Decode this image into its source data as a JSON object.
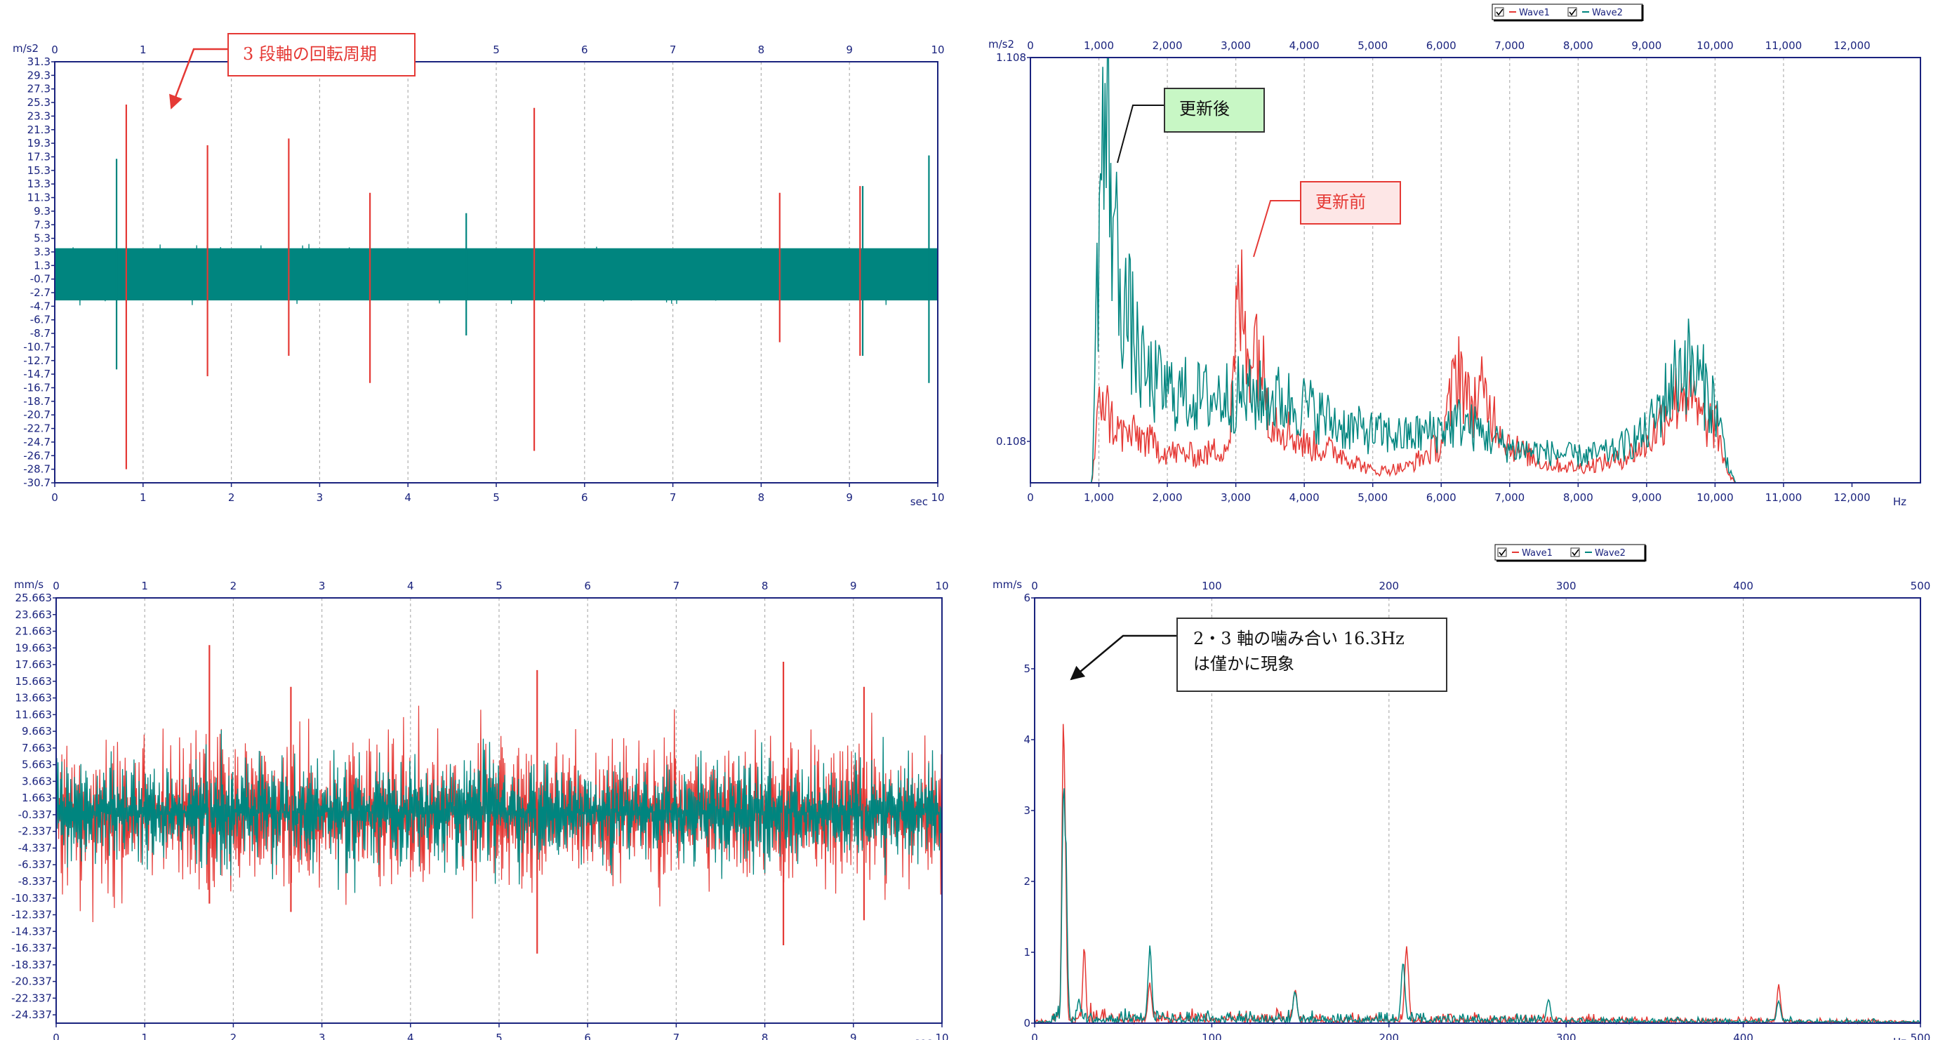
{
  "colors": {
    "wave1": "#e53935",
    "wave2": "#00857f",
    "axis": "#1a237e",
    "grid": "#b0b0b0"
  },
  "chart_data": [
    {
      "id": "tl",
      "type": "line",
      "ylabel": "m/s2",
      "xlabel": "sec",
      "xlim": [
        0,
        10
      ],
      "x_ticks": [
        "0",
        "1",
        "2",
        "3",
        "4",
        "5",
        "6",
        "7",
        "8",
        "9",
        "10"
      ],
      "ylim": [
        -30.7,
        31.3
      ],
      "y_ticks": [
        "31.3",
        "29.3",
        "27.3",
        "25.3",
        "23.3",
        "21.3",
        "19.3",
        "17.3",
        "15.3",
        "13.3",
        "11.3",
        "9.3",
        "7.3",
        "5.3",
        "3.3",
        "1.3",
        "-0.7",
        "-2.7",
        "-4.7",
        "-6.7",
        "-8.7",
        "-10.7",
        "-12.7",
        "-14.7",
        "-16.7",
        "-18.7",
        "-20.7",
        "-22.7",
        "-24.7",
        "-26.7",
        "-28.7",
        "-30.7"
      ],
      "x_grid_dashed": true,
      "legend": false,
      "series": [
        {
          "name": "Wave1",
          "color": "#e53935",
          "band": 0,
          "spikes": [
            [
              0.81,
              25,
              -28.7
            ],
            [
              1.73,
              19,
              -15
            ],
            [
              2.65,
              20,
              -12
            ],
            [
              3.57,
              12,
              -16
            ],
            [
              5.43,
              24.5,
              -26
            ],
            [
              8.21,
              12,
              -10
            ],
            [
              9.12,
              13,
              -12
            ]
          ]
        },
        {
          "name": "Wave2",
          "color": "#00857f",
          "band": 4.8,
          "spikes": [
            [
              0.7,
              17,
              -14
            ],
            [
              4.66,
              9,
              -9
            ],
            [
              9.15,
              13,
              -12
            ],
            [
              9.9,
              17.5,
              -16
            ]
          ]
        }
      ]
    },
    {
      "id": "bl",
      "type": "line",
      "ylabel": "mm/s",
      "xlabel": "sec",
      "xlim": [
        0,
        10
      ],
      "x_ticks": [
        "0",
        "1",
        "2",
        "3",
        "4",
        "5",
        "6",
        "7",
        "8",
        "9",
        "10"
      ],
      "ylim": [
        -25.337,
        25.663
      ],
      "y_ticks": [
        "25.663",
        "23.663",
        "21.663",
        "19.663",
        "17.663",
        "15.663",
        "13.663",
        "11.663",
        "9.663",
        "7.663",
        "5.663",
        "3.663",
        "1.663",
        "-0.337",
        "-2.337",
        "-4.337",
        "-6.337",
        "-8.337",
        "-10.337",
        "-12.337",
        "-14.337",
        "-16.337",
        "-18.337",
        "-20.337",
        "-22.337",
        "-24.337"
      ],
      "x_grid_dashed": true,
      "legend": false,
      "series": [
        {
          "name": "Wave1",
          "color": "#e53935",
          "band": 12,
          "spikes": [
            [
              1.73,
              20,
              -11
            ],
            [
              2.65,
              15,
              -12
            ],
            [
              5.43,
              17,
              -17
            ],
            [
              8.21,
              18,
              -16
            ],
            [
              9.12,
              15,
              -13
            ]
          ]
        },
        {
          "name": "Wave2",
          "color": "#00857f",
          "band": 9,
          "spikes": []
        }
      ]
    },
    {
      "id": "tr",
      "type": "line",
      "ylabel": "m/s2",
      "xlabel": "Hz",
      "xlim": [
        0,
        13000
      ],
      "x_ticks": [
        "0",
        "1,000",
        "2,000",
        "3,000",
        "4,000",
        "5,000",
        "6,000",
        "7,000",
        "8,000",
        "9,000",
        "10,000",
        "11,000",
        "12,000"
      ],
      "x_tick_values": [
        0,
        1000,
        2000,
        3000,
        4000,
        5000,
        6000,
        7000,
        8000,
        9000,
        10000,
        11000,
        12000
      ],
      "ylim": [
        0,
        1.108
      ],
      "y_ticks": [
        "1.108",
        "0.108"
      ],
      "y_tick_values": [
        1.108,
        0.108
      ],
      "x_grid_dashed": true,
      "legend": true,
      "series": [
        {
          "name": "Wave1",
          "color": "#e53935",
          "profile": [
            [
              0,
              0
            ],
            [
              900,
              0
            ],
            [
              960,
              0.12
            ],
            [
              1050,
              0.25
            ],
            [
              1150,
              0.17
            ],
            [
              1300,
              0.13
            ],
            [
              1600,
              0.12
            ],
            [
              2000,
              0.08
            ],
            [
              2500,
              0.07
            ],
            [
              2900,
              0.1
            ],
            [
              3050,
              0.5
            ],
            [
              3150,
              0.35
            ],
            [
              3300,
              0.38
            ],
            [
              3500,
              0.18
            ],
            [
              4000,
              0.1
            ],
            [
              4500,
              0.08
            ],
            [
              5000,
              0.03
            ],
            [
              5500,
              0.04
            ],
            [
              6000,
              0.1
            ],
            [
              6150,
              0.22
            ],
            [
              6250,
              0.33
            ],
            [
              6400,
              0.2
            ],
            [
              6600,
              0.23
            ],
            [
              7000,
              0.1
            ],
            [
              7500,
              0.05
            ],
            [
              8000,
              0.04
            ],
            [
              8600,
              0.06
            ],
            [
              9000,
              0.1
            ],
            [
              9350,
              0.2
            ],
            [
              9550,
              0.25
            ],
            [
              9800,
              0.16
            ],
            [
              10000,
              0.15
            ],
            [
              10200,
              0.02
            ],
            [
              10300,
              0
            ]
          ]
        },
        {
          "name": "Wave2",
          "color": "#00857f",
          "profile": [
            [
              0,
              0
            ],
            [
              900,
              0
            ],
            [
              960,
              0.4
            ],
            [
              1020,
              0.8
            ],
            [
              1080,
              0.9
            ],
            [
              1160,
              0.85
            ],
            [
              1250,
              0.6
            ],
            [
              1400,
              0.45
            ],
            [
              1650,
              0.28
            ],
            [
              2000,
              0.24
            ],
            [
              2500,
              0.22
            ],
            [
              3000,
              0.23
            ],
            [
              3500,
              0.22
            ],
            [
              4000,
              0.2
            ],
            [
              4500,
              0.15
            ],
            [
              5000,
              0.13
            ],
            [
              5500,
              0.12
            ],
            [
              6000,
              0.14
            ],
            [
              6300,
              0.16
            ],
            [
              6700,
              0.12
            ],
            [
              7000,
              0.09
            ],
            [
              7500,
              0.08
            ],
            [
              8000,
              0.07
            ],
            [
              8500,
              0.08
            ],
            [
              9000,
              0.13
            ],
            [
              9350,
              0.25
            ],
            [
              9550,
              0.32
            ],
            [
              9800,
              0.26
            ],
            [
              10000,
              0.2
            ],
            [
              10200,
              0.04
            ],
            [
              10300,
              0
            ]
          ]
        }
      ]
    },
    {
      "id": "br",
      "type": "line",
      "ylabel": "mm/s",
      "xlabel": "Hz",
      "xlim": [
        0,
        500
      ],
      "x_ticks": [
        "0",
        "100",
        "200",
        "300",
        "400",
        "500"
      ],
      "x_tick_values": [
        0,
        100,
        200,
        300,
        400,
        500
      ],
      "ylim": [
        0,
        6
      ],
      "y_ticks": [
        "6",
        "5",
        "4",
        "3",
        "2",
        "1",
        "0"
      ],
      "y_tick_values": [
        6,
        5,
        4,
        3,
        2,
        1,
        0
      ],
      "x_grid_dashed": true,
      "legend": true,
      "series": [
        {
          "name": "Wave1",
          "color": "#e53935",
          "peaks": [
            [
              16.3,
              4.8
            ],
            [
              17,
              3.2
            ],
            [
              28,
              1.1
            ],
            [
              65,
              0.6
            ],
            [
              147,
              0.5
            ],
            [
              210,
              1.1
            ],
            [
              420,
              0.55
            ]
          ],
          "floor": 0.3,
          "floor_end": 0.06
        },
        {
          "name": "Wave2",
          "color": "#00857f",
          "peaks": [
            [
              16.3,
              3.8
            ],
            [
              17.5,
              2.8
            ],
            [
              18,
              1.2
            ],
            [
              25,
              0.4
            ],
            [
              65,
              1.1
            ],
            [
              147,
              0.5
            ],
            [
              208,
              0.9
            ],
            [
              290,
              0.35
            ],
            [
              420,
              0.35
            ]
          ],
          "floor": 0.3,
          "floor_end": 0.06
        }
      ]
    }
  ],
  "legends": {
    "items": [
      {
        "label": "Wave1"
      },
      {
        "label": "Wave2"
      }
    ]
  },
  "annotations": {
    "tl_callout": "3 段軸の回転周期",
    "tr_after": "更新後",
    "tr_before": "更新前",
    "br_line1": "2・3 軸の噛み合い 16.3Hz",
    "br_line2": "は僅かに現象"
  }
}
